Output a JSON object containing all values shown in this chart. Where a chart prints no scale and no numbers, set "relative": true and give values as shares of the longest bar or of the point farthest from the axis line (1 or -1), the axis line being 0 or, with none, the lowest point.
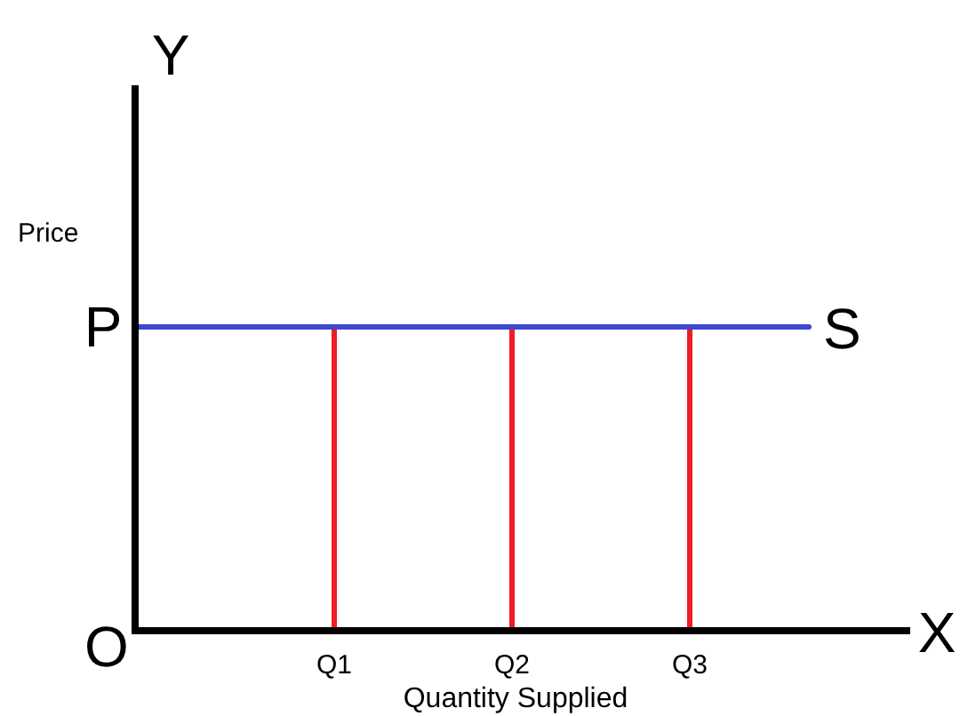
{
  "chart_data": {
    "type": "bar",
    "relative": true,
    "xlabel": "Quantity Supplied",
    "ylabel": "Price",
    "categories": [
      "Q1",
      "Q2",
      "Q3"
    ],
    "values": [
      1,
      1,
      1
    ],
    "color": "#ee1c25",
    "ref_lines": [
      {
        "axis": "y",
        "value": 1,
        "label": "S",
        "color": "#3f48cc"
      }
    ],
    "annotations": [
      "Y",
      "X",
      "O",
      "P"
    ]
  }
}
